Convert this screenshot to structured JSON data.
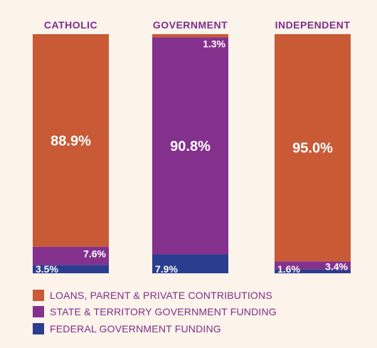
{
  "chart_data": {
    "type": "bar",
    "stacked": true,
    "normalized_percent": true,
    "categories": [
      "CATHOLIC",
      "GOVERNMENT",
      "INDEPENDENT"
    ],
    "series": [
      {
        "name": "FEDERAL GOVERNMENT FUNDING",
        "key": "federal",
        "color": "#2b3d8f",
        "values": [
          3.5,
          7.9,
          1.6
        ],
        "labels": [
          "3.5%",
          "7.9%",
          "1.6%"
        ]
      },
      {
        "name": "STATE & TERRITORY GOVERNMENT FUNDING",
        "key": "state",
        "color": "#84318e",
        "values": [
          7.6,
          90.8,
          3.4
        ],
        "labels": [
          "7.6%",
          "90.8%",
          "3.4%"
        ]
      },
      {
        "name": "LOANS, PARENT & PRIVATE CONTRIBUTIONS",
        "key": "private",
        "color": "#c85a36",
        "values": [
          88.9,
          1.3,
          95.0
        ],
        "labels": [
          "88.9%",
          "1.3%",
          "95.0%"
        ]
      }
    ],
    "legend": {
      "placement": "bottom-left",
      "order": [
        "private",
        "state",
        "federal"
      ]
    },
    "grid": false,
    "axes_visible": false
  }
}
